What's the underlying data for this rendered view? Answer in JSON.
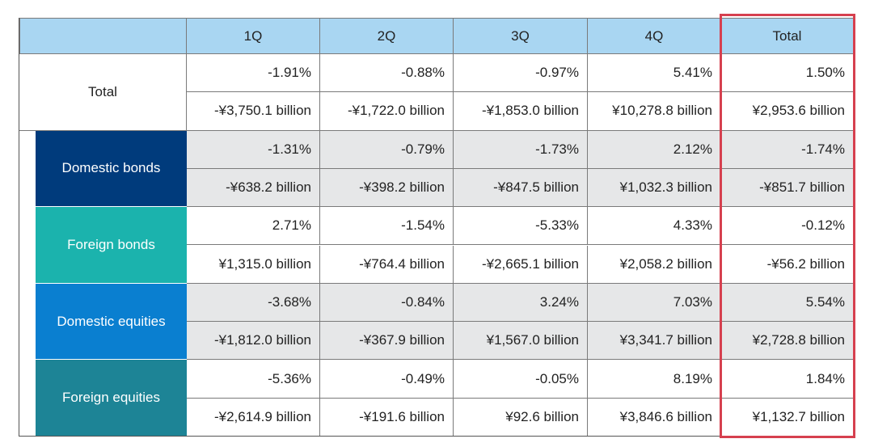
{
  "table": {
    "columns": [
      "1Q",
      "2Q",
      "3Q",
      "4Q",
      "Total"
    ],
    "groups": [
      {
        "label": "Total",
        "rows": [
          [
            "-1.91%",
            "-0.88%",
            "-0.97%",
            "5.41%",
            "1.50%"
          ],
          [
            "-¥3,750.1 billion",
            "-¥1,722.0 billion",
            "-¥1,853.0 billion",
            "¥10,278.8 billion",
            "¥2,953.6 billion"
          ]
        ]
      },
      {
        "label": "Domestic bonds",
        "rows": [
          [
            "-1.31%",
            "-0.79%",
            "-1.73%",
            "2.12%",
            "-1.74%"
          ],
          [
            "-¥638.2 billion",
            "-¥398.2 billion",
            "-¥847.5 billion",
            "¥1,032.3 billion",
            "-¥851.7 billion"
          ]
        ]
      },
      {
        "label": "Foreign bonds",
        "rows": [
          [
            "2.71%",
            "-1.54%",
            "-5.33%",
            "4.33%",
            "-0.12%"
          ],
          [
            "¥1,315.0 billion",
            "-¥764.4 billion",
            "-¥2,665.1 billion",
            "¥2,058.2 billion",
            "-¥56.2 billion"
          ]
        ]
      },
      {
        "label": "Domestic equities",
        "rows": [
          [
            "-3.68%",
            "-0.84%",
            "3.24%",
            "7.03%",
            "5.54%"
          ],
          [
            "-¥1,812.0 billion",
            "-¥367.9 billion",
            "¥1,567.0 billion",
            "¥3,341.7 billion",
            "¥2,728.8 billion"
          ]
        ]
      },
      {
        "label": "Foreign equities",
        "rows": [
          [
            "-5.36%",
            "-0.49%",
            "-0.05%",
            "8.19%",
            "1.84%"
          ],
          [
            "-¥2,614.9 billion",
            "-¥191.6 billion",
            "¥92.6 billion",
            "¥3,846.6 billion",
            "¥1,132.7 billion"
          ]
        ]
      }
    ]
  }
}
